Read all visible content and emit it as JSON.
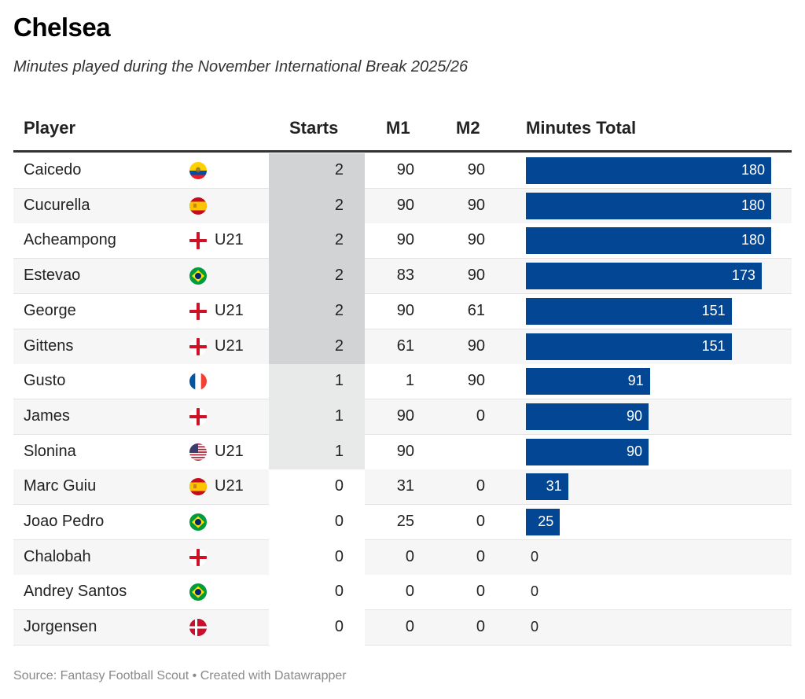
{
  "title": "Chelsea",
  "subtitle": "Minutes played during the November International Break 2025/26",
  "source": "Source: Fantasy Football Scout • Created with Datawrapper",
  "colors": {
    "bar": "#034694",
    "starts_2": "#d2d3d5",
    "starts_1": "#e8e9e9",
    "starts_0": "#ffffff"
  },
  "chart_data": {
    "type": "table",
    "title": "Chelsea",
    "subtitle": "Minutes played during the November International Break 2025/26",
    "columns": [
      "Player",
      "Starts",
      "M1",
      "M2",
      "Minutes Total"
    ],
    "xlim": [
      0,
      180
    ],
    "rows": [
      {
        "player": "Caicedo",
        "flag": "ecuador-flag-icon",
        "tag": "",
        "starts": "2",
        "m1": "90",
        "m2": "90",
        "total": 180
      },
      {
        "player": "Cucurella",
        "flag": "spain-flag-icon",
        "tag": "",
        "starts": "2",
        "m1": "90",
        "m2": "90",
        "total": 180
      },
      {
        "player": "Acheampong",
        "flag": "england-flag-icon",
        "tag": "U21",
        "starts": "2",
        "m1": "90",
        "m2": "90",
        "total": 180
      },
      {
        "player": "Estevao",
        "flag": "brazil-flag-icon",
        "tag": "",
        "starts": "2",
        "m1": "83",
        "m2": "90",
        "total": 173
      },
      {
        "player": "George",
        "flag": "england-flag-icon",
        "tag": "U21",
        "starts": "2",
        "m1": "90",
        "m2": "61",
        "total": 151
      },
      {
        "player": "Gittens",
        "flag": "england-flag-icon",
        "tag": "U21",
        "starts": "2",
        "m1": "61",
        "m2": "90",
        "total": 151
      },
      {
        "player": "Gusto",
        "flag": "france-flag-icon",
        "tag": "",
        "starts": "1",
        "m1": "1",
        "m2": "90",
        "total": 91
      },
      {
        "player": "James",
        "flag": "england-flag-icon",
        "tag": "",
        "starts": "1",
        "m1": "90",
        "m2": "0",
        "total": 90
      },
      {
        "player": "Slonina",
        "flag": "usa-flag-icon",
        "tag": "U21",
        "starts": "1",
        "m1": "90",
        "m2": "",
        "total": 90
      },
      {
        "player": "Marc Guiu",
        "flag": "spain-flag-icon",
        "tag": "U21",
        "starts": "0",
        "m1": "31",
        "m2": "0",
        "total": 31
      },
      {
        "player": "Joao Pedro",
        "flag": "brazil-flag-icon",
        "tag": "",
        "starts": "0",
        "m1": "25",
        "m2": "0",
        "total": 25
      },
      {
        "player": "Chalobah",
        "flag": "england-flag-icon",
        "tag": "",
        "starts": "0",
        "m1": "0",
        "m2": "0",
        "total": 0
      },
      {
        "player": "Andrey Santos",
        "flag": "brazil-flag-icon",
        "tag": "",
        "starts": "0",
        "m1": "0",
        "m2": "0",
        "total": 0
      },
      {
        "player": "Jorgensen",
        "flag": "denmark-flag-icon",
        "tag": "",
        "starts": "0",
        "m1": "0",
        "m2": "0",
        "total": 0
      }
    ]
  }
}
